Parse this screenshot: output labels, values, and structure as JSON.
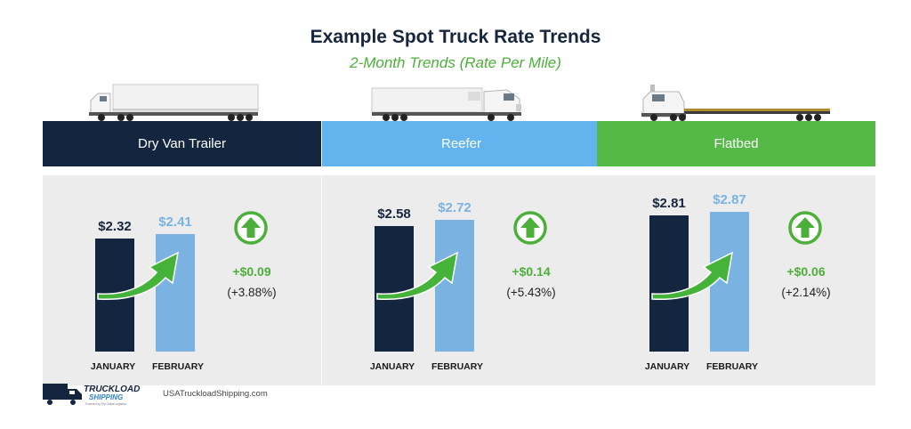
{
  "title": "Example Spot Truck Rate Trends",
  "subtitle": "2-Month Trends (Rate Per Mile)",
  "colors": {
    "dry_van_header": "#14253f",
    "reefer_header": "#63b3ee",
    "flatbed_header": "#55b947",
    "january_bar": "#14253f",
    "february_bar": "#7ab2e2",
    "change_green": "#4caf3a"
  },
  "chart_data": [
    {
      "type": "bar",
      "title": "Dry Van Trailer",
      "categories": [
        "JANUARY",
        "FEBRUARY"
      ],
      "values": [
        2.32,
        2.41
      ],
      "value_labels": [
        "$2.32",
        "$2.41"
      ],
      "change": "+$0.09",
      "change_pct": "(+3.88%)"
    },
    {
      "type": "bar",
      "title": "Reefer",
      "categories": [
        "JANUARY",
        "FEBRUARY"
      ],
      "values": [
        2.58,
        2.72
      ],
      "value_labels": [
        "$2.58",
        "$2.72"
      ],
      "change": "+$0.14",
      "change_pct": "(+5.43%)"
    },
    {
      "type": "bar",
      "title": "Flatbed",
      "categories": [
        "JANUARY",
        "FEBRUARY"
      ],
      "values": [
        2.81,
        2.87
      ],
      "value_labels": [
        "$2.81",
        "$2.87"
      ],
      "change": "+$0.06",
      "change_pct": "(+2.14%)"
    }
  ],
  "footer": {
    "logo_text": "TRUCKLOAD SHIPPING",
    "logo_tagline": "Powered by Dry Global Logistics",
    "website": "USATruckloadShipping.com"
  }
}
